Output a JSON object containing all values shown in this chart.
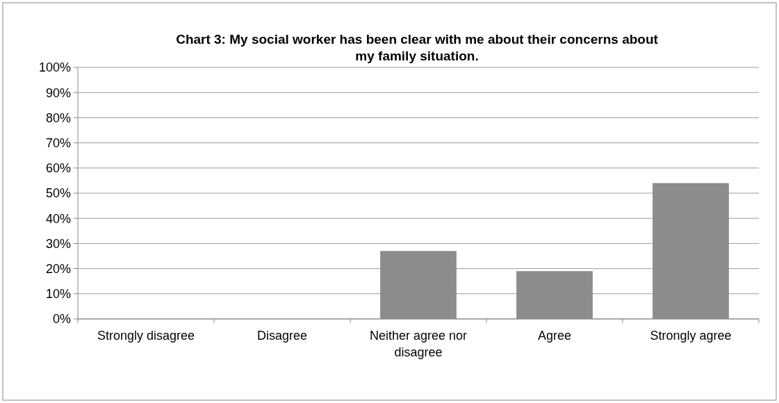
{
  "chart_data": {
    "type": "bar",
    "title": "Chart 3: My social worker has been clear with me about their concerns about\nmy family situation.",
    "categories": [
      "Strongly disagree",
      "Disagree",
      "Neither agree nor\ndisagree",
      "Agree",
      "Strongly agree"
    ],
    "values": [
      0,
      0,
      27,
      19,
      54
    ],
    "color": "#8c8c8c",
    "ylim": [
      0,
      100
    ],
    "yticks": [
      {
        "value": 0,
        "label": "0%"
      },
      {
        "value": 10,
        "label": "10%"
      },
      {
        "value": 20,
        "label": "20%"
      },
      {
        "value": 30,
        "label": "30%"
      },
      {
        "value": 40,
        "label": "40%"
      },
      {
        "value": 50,
        "label": "50%"
      },
      {
        "value": 60,
        "label": "60%"
      },
      {
        "value": 70,
        "label": "70%"
      },
      {
        "value": 80,
        "label": "80%"
      },
      {
        "value": 90,
        "label": "90%"
      },
      {
        "value": 100,
        "label": "100%"
      }
    ],
    "grid": "y"
  }
}
